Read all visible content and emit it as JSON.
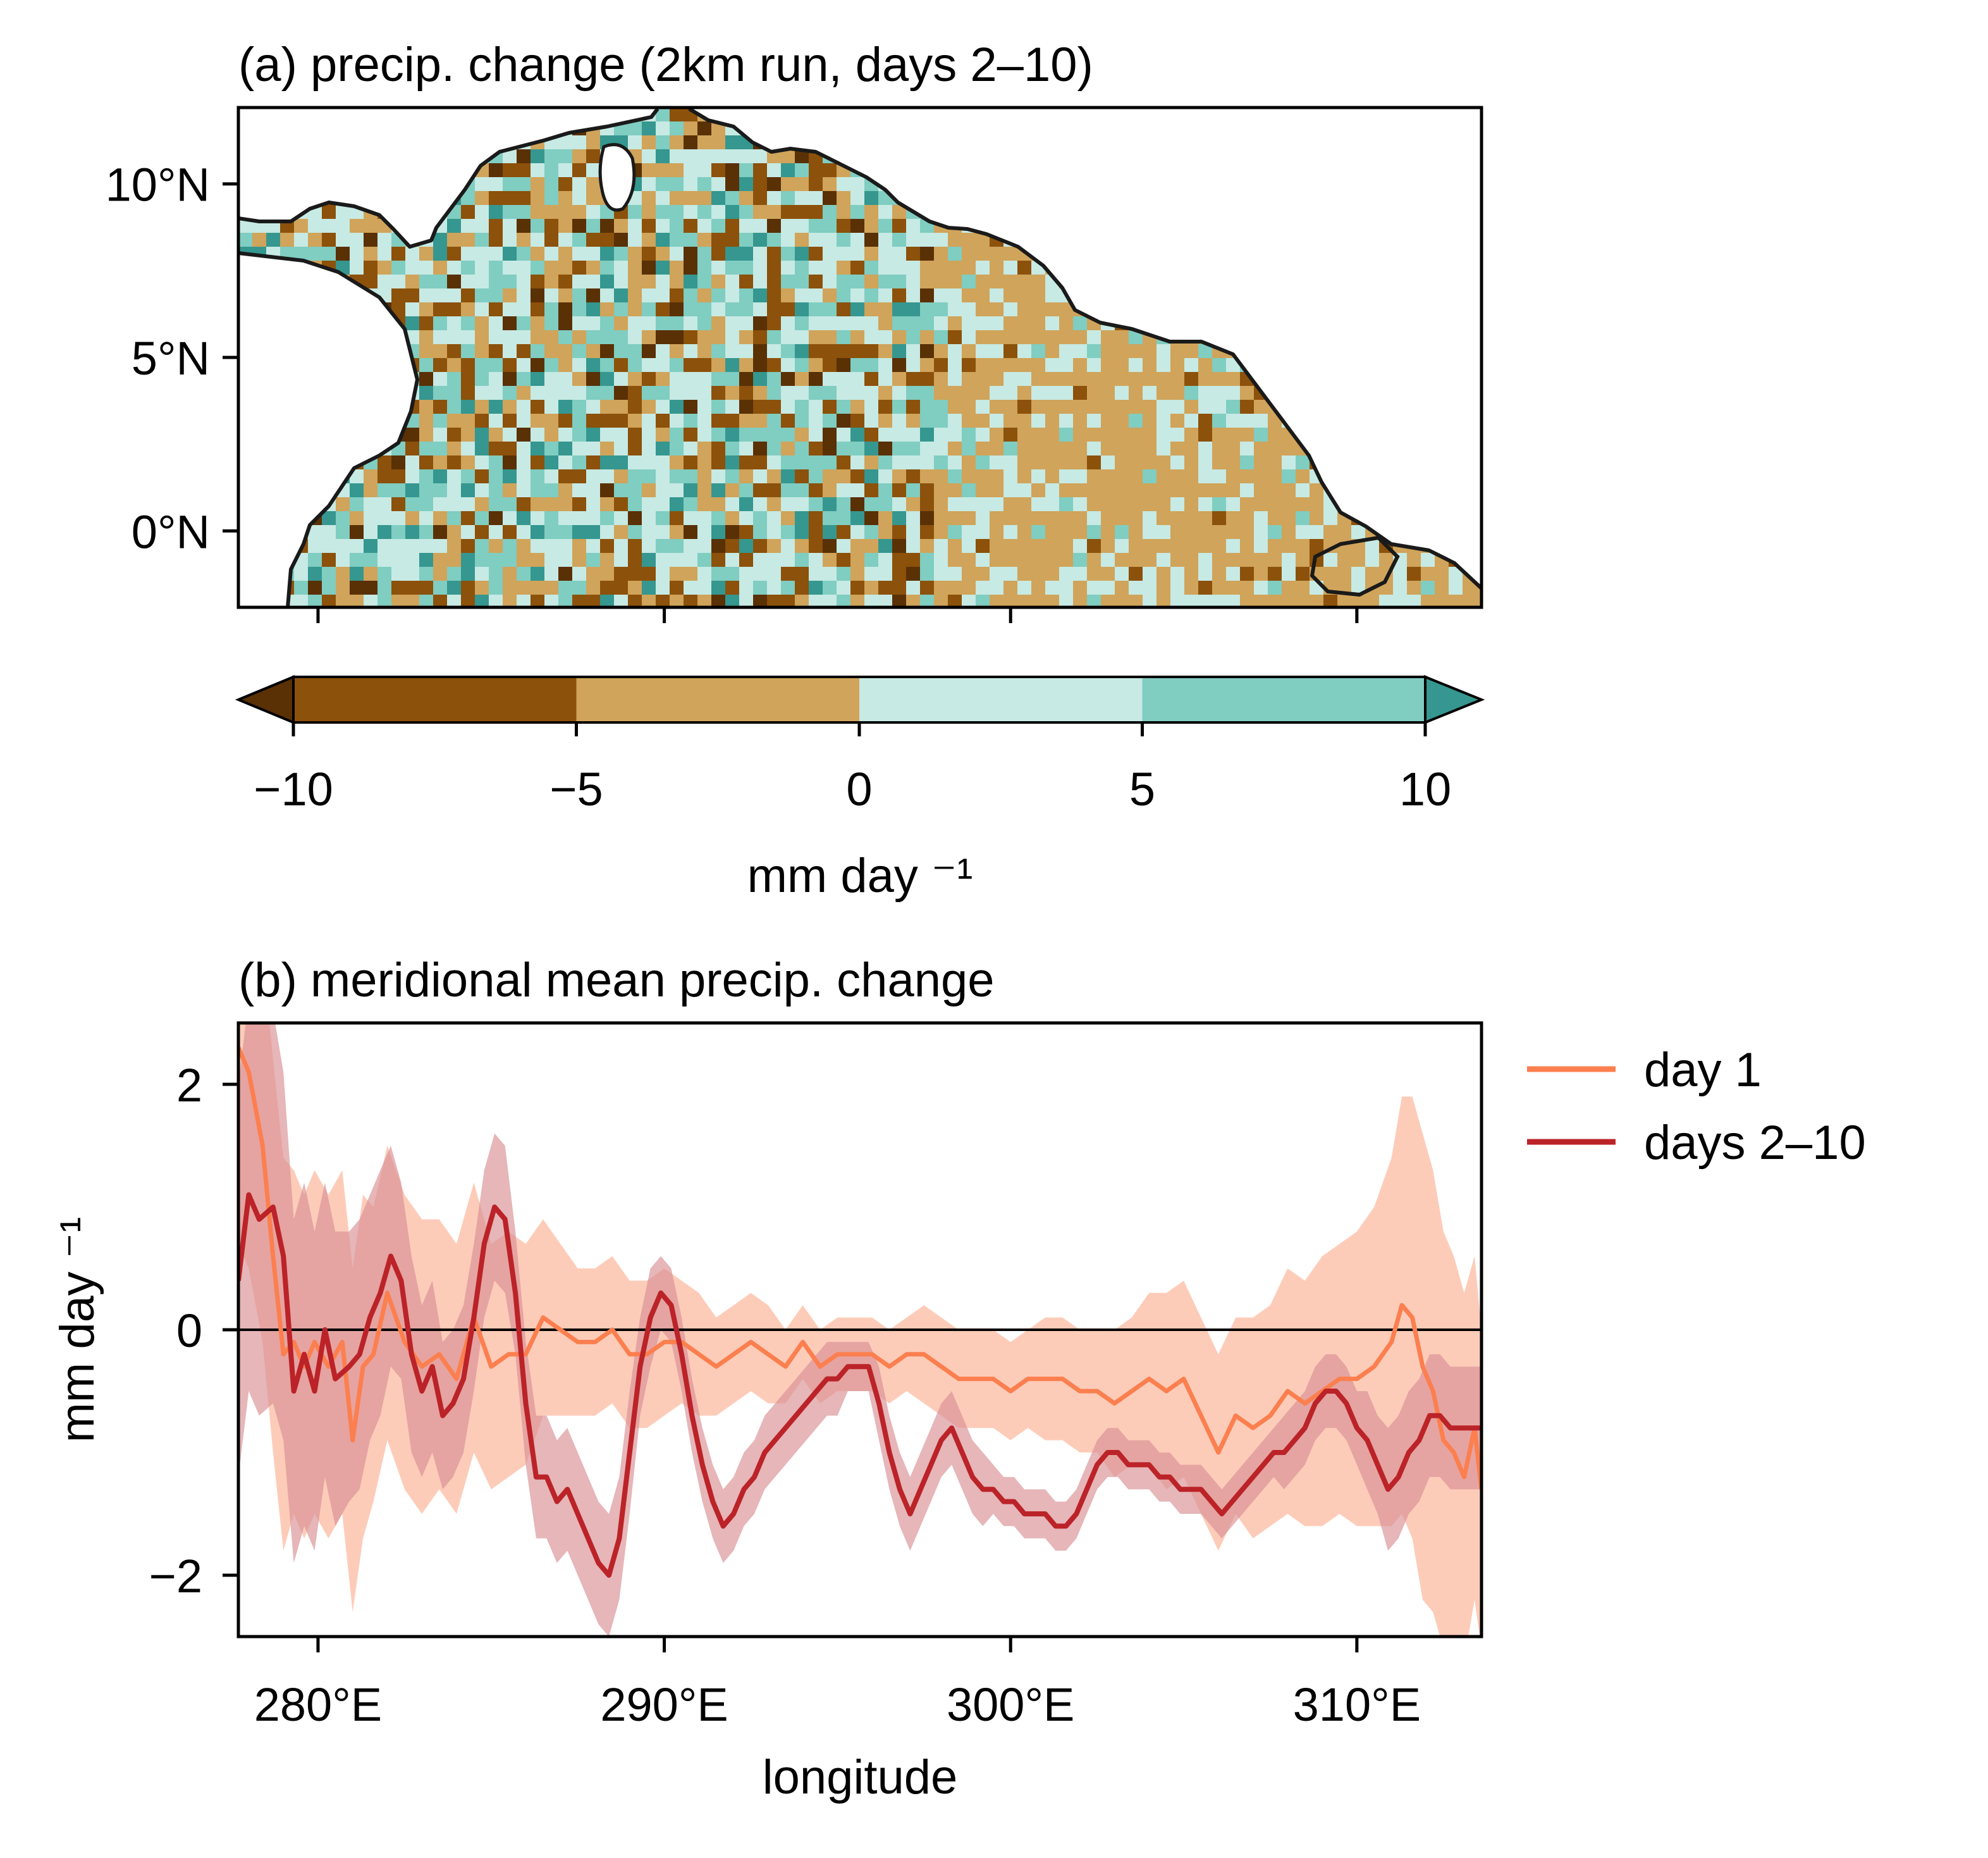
{
  "panel_a": {
    "title": "(a) precip. change (2km run, days 2–10)",
    "lat_ticks": [
      {
        "value": 10,
        "label": "10°N"
      },
      {
        "value": 5,
        "label": "5°N"
      },
      {
        "value": 0,
        "label": "0°N"
      }
    ],
    "lon_range": [
      277.7,
      313.6
    ],
    "lat_range": [
      -2.2,
      12.2
    ],
    "lon_tick_values": [
      280,
      290,
      300,
      310
    ]
  },
  "colorbar": {
    "levels": [
      -10,
      -5,
      0,
      5,
      10
    ],
    "tick_labels": [
      "−10",
      "−5",
      "0",
      "5",
      "10"
    ],
    "colors": [
      "#5a3005",
      "#8c510a",
      "#d0a45a",
      "#c7eae4",
      "#80cdc1",
      "#35978f"
    ],
    "extend": "both",
    "label": "mm day ⁻¹"
  },
  "chart_data": {
    "type": "line",
    "title": "(b) meridional mean precip. change",
    "xlabel": "longitude",
    "ylabel": "mm day ⁻¹",
    "xlim": [
      277.7,
      313.6
    ],
    "ylim": [
      -2.5,
      2.5
    ],
    "x_ticks": [
      280,
      290,
      300,
      310
    ],
    "x_tick_labels": [
      "280°E",
      "290°E",
      "300°E",
      "310°E"
    ],
    "y_ticks": [
      2,
      0,
      -2
    ],
    "y_tick_labels": [
      "2",
      "0",
      "−2"
    ],
    "zero_line": true,
    "legend_position": "outside-right",
    "series": [
      {
        "name": "day 1",
        "color": "#fc7f4f",
        "band_color": "#fcbba1",
        "x": [
          277.7,
          278.0,
          278.4,
          278.7,
          279.0,
          279.3,
          279.6,
          279.9,
          280.3,
          280.7,
          281.0,
          281.3,
          281.6,
          282.0,
          282.5,
          283.0,
          283.5,
          284.0,
          284.5,
          285.0,
          285.5,
          286.0,
          286.5,
          287.0,
          287.5,
          288.0,
          288.5,
          289.0,
          289.5,
          290.0,
          290.5,
          291.0,
          291.5,
          292.0,
          292.5,
          293.0,
          293.5,
          294.0,
          294.5,
          295.0,
          295.5,
          296.0,
          296.5,
          297.0,
          297.5,
          298.0,
          298.5,
          299.0,
          299.5,
          300.0,
          300.5,
          301.0,
          301.5,
          302.0,
          302.5,
          303.0,
          303.5,
          304.0,
          304.5,
          305.0,
          305.5,
          306.0,
          306.5,
          307.0,
          307.5,
          308.0,
          308.5,
          309.0,
          309.5,
          310.0,
          310.5,
          311.0,
          311.3,
          311.6,
          311.9,
          312.2,
          312.5,
          312.8,
          313.1,
          313.4,
          313.6
        ],
        "values": [
          2.3,
          2.1,
          1.5,
          0.6,
          -0.2,
          -0.1,
          -0.3,
          -0.1,
          -0.3,
          -0.1,
          -0.9,
          -0.3,
          -0.2,
          0.3,
          -0.1,
          -0.3,
          -0.2,
          -0.4,
          0.1,
          -0.3,
          -0.2,
          -0.2,
          0.1,
          0.0,
          -0.1,
          -0.1,
          0.0,
          -0.2,
          -0.2,
          -0.1,
          -0.1,
          -0.2,
          -0.3,
          -0.2,
          -0.1,
          -0.2,
          -0.3,
          -0.1,
          -0.3,
          -0.2,
          -0.2,
          -0.2,
          -0.3,
          -0.2,
          -0.2,
          -0.3,
          -0.4,
          -0.4,
          -0.4,
          -0.5,
          -0.4,
          -0.4,
          -0.4,
          -0.5,
          -0.5,
          -0.6,
          -0.5,
          -0.4,
          -0.5,
          -0.4,
          -0.7,
          -1.0,
          -0.7,
          -0.8,
          -0.7,
          -0.5,
          -0.6,
          -0.5,
          -0.4,
          -0.4,
          -0.3,
          -0.1,
          0.2,
          0.1,
          -0.3,
          -0.5,
          -0.9,
          -1.0,
          -1.2,
          -0.8,
          -1.3
        ],
        "band_spread": [
          1.6,
          1.6,
          1.6,
          1.6,
          1.6,
          1.4,
          1.4,
          1.4,
          1.4,
          1.4,
          1.4,
          1.4,
          1.2,
          1.2,
          1.2,
          1.2,
          1.1,
          1.1,
          1.1,
          1.0,
          1.0,
          0.9,
          0.8,
          0.7,
          0.6,
          0.6,
          0.6,
          0.6,
          0.6,
          0.6,
          0.5,
          0.5,
          0.4,
          0.4,
          0.4,
          0.4,
          0.3,
          0.3,
          0.3,
          0.3,
          0.3,
          0.3,
          0.3,
          0.3,
          0.4,
          0.4,
          0.4,
          0.4,
          0.4,
          0.4,
          0.4,
          0.5,
          0.5,
          0.5,
          0.5,
          0.6,
          0.6,
          0.7,
          0.8,
          0.8,
          0.8,
          0.8,
          0.8,
          0.9,
          0.9,
          1.0,
          1.0,
          1.1,
          1.1,
          1.2,
          1.3,
          1.5,
          1.7,
          1.8,
          1.9,
          1.8,
          1.7,
          1.6,
          1.5,
          1.4,
          1.3
        ]
      },
      {
        "name": "days 2–10",
        "color": "#bb2328",
        "band_color": "#d98f94",
        "x": [
          277.7,
          278.0,
          278.3,
          278.7,
          279.0,
          279.3,
          279.6,
          279.9,
          280.2,
          280.5,
          280.9,
          281.2,
          281.5,
          281.8,
          282.1,
          282.4,
          282.7,
          283.0,
          283.3,
          283.6,
          283.9,
          284.2,
          284.5,
          284.8,
          285.1,
          285.4,
          285.7,
          286.0,
          286.3,
          286.6,
          286.9,
          287.2,
          287.5,
          287.8,
          288.1,
          288.4,
          288.7,
          289.0,
          289.3,
          289.6,
          289.9,
          290.2,
          290.5,
          290.8,
          291.1,
          291.4,
          291.7,
          292.0,
          292.3,
          292.6,
          292.9,
          293.2,
          293.5,
          293.8,
          294.1,
          294.4,
          294.7,
          295.0,
          295.3,
          295.6,
          295.9,
          296.2,
          296.5,
          296.8,
          297.1,
          297.4,
          297.7,
          298.0,
          298.3,
          298.6,
          298.9,
          299.2,
          299.5,
          299.8,
          300.1,
          300.4,
          300.7,
          301.0,
          301.3,
          301.6,
          301.9,
          302.2,
          302.5,
          302.8,
          303.1,
          303.4,
          303.7,
          304.0,
          304.3,
          304.6,
          304.9,
          305.2,
          305.5,
          305.8,
          306.1,
          306.4,
          306.7,
          307.0,
          307.3,
          307.6,
          307.9,
          308.2,
          308.5,
          308.8,
          309.1,
          309.4,
          309.7,
          310.0,
          310.3,
          310.6,
          310.9,
          311.2,
          311.5,
          311.8,
          312.1,
          312.4,
          312.7,
          313.0,
          313.3,
          313.6
        ],
        "values": [
          0.4,
          1.1,
          0.9,
          1.0,
          0.6,
          -0.5,
          -0.2,
          -0.5,
          0.0,
          -0.4,
          -0.3,
          -0.2,
          0.1,
          0.3,
          0.6,
          0.4,
          -0.2,
          -0.5,
          -0.3,
          -0.7,
          -0.6,
          -0.4,
          0.1,
          0.7,
          1.0,
          0.9,
          0.3,
          -0.6,
          -1.2,
          -1.2,
          -1.4,
          -1.3,
          -1.5,
          -1.7,
          -1.9,
          -2.0,
          -1.7,
          -1.0,
          -0.3,
          0.1,
          0.3,
          0.2,
          -0.2,
          -0.7,
          -1.1,
          -1.4,
          -1.6,
          -1.5,
          -1.3,
          -1.2,
          -1.0,
          -0.9,
          -0.8,
          -0.7,
          -0.6,
          -0.5,
          -0.4,
          -0.4,
          -0.3,
          -0.3,
          -0.3,
          -0.6,
          -1.0,
          -1.3,
          -1.5,
          -1.3,
          -1.1,
          -0.9,
          -0.8,
          -1.0,
          -1.2,
          -1.3,
          -1.3,
          -1.4,
          -1.4,
          -1.5,
          -1.5,
          -1.5,
          -1.6,
          -1.6,
          -1.5,
          -1.3,
          -1.1,
          -1.0,
          -1.0,
          -1.1,
          -1.1,
          -1.1,
          -1.2,
          -1.2,
          -1.3,
          -1.3,
          -1.3,
          -1.4,
          -1.5,
          -1.4,
          -1.3,
          -1.2,
          -1.1,
          -1.0,
          -1.0,
          -0.9,
          -0.8,
          -0.6,
          -0.5,
          -0.5,
          -0.6,
          -0.8,
          -0.9,
          -1.1,
          -1.3,
          -1.2,
          -1.0,
          -0.9,
          -0.7,
          -0.7,
          -0.8,
          -0.8,
          -0.8,
          -0.8
        ],
        "band_spread": [
          1.6,
          1.6,
          1.6,
          1.6,
          1.5,
          1.4,
          1.4,
          1.3,
          1.2,
          1.2,
          1.1,
          1.1,
          1.0,
          1.0,
          0.9,
          0.8,
          0.8,
          0.7,
          0.7,
          0.6,
          0.6,
          0.6,
          0.6,
          0.6,
          0.6,
          0.6,
          0.5,
          0.5,
          0.5,
          0.5,
          0.5,
          0.5,
          0.5,
          0.5,
          0.5,
          0.5,
          0.5,
          0.5,
          0.4,
          0.4,
          0.3,
          0.3,
          0.3,
          0.3,
          0.3,
          0.3,
          0.3,
          0.3,
          0.3,
          0.3,
          0.3,
          0.3,
          0.3,
          0.3,
          0.3,
          0.3,
          0.3,
          0.3,
          0.2,
          0.2,
          0.2,
          0.3,
          0.3,
          0.3,
          0.3,
          0.3,
          0.3,
          0.3,
          0.3,
          0.3,
          0.3,
          0.3,
          0.2,
          0.2,
          0.2,
          0.2,
          0.2,
          0.2,
          0.2,
          0.2,
          0.2,
          0.2,
          0.2,
          0.2,
          0.2,
          0.2,
          0.2,
          0.2,
          0.2,
          0.2,
          0.2,
          0.2,
          0.2,
          0.2,
          0.2,
          0.2,
          0.2,
          0.2,
          0.2,
          0.2,
          0.3,
          0.3,
          0.3,
          0.3,
          0.3,
          0.3,
          0.3,
          0.3,
          0.4,
          0.4,
          0.5,
          0.5,
          0.5,
          0.5,
          0.5,
          0.5,
          0.5,
          0.5,
          0.5,
          0.5
        ]
      }
    ]
  }
}
